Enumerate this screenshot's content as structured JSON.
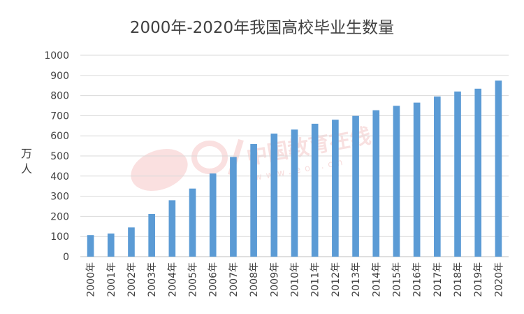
{
  "chart_data": {
    "type": "bar",
    "title": "2000年-2020年我国高校毕业生数量",
    "ylabel": "万人",
    "xlabel": "",
    "ylim": [
      0,
      1000
    ],
    "yticks": [
      0,
      100,
      200,
      300,
      400,
      500,
      600,
      700,
      800,
      900,
      1000
    ],
    "grid": true,
    "legend": "none",
    "bar_color": "#5b9bd5",
    "categories": [
      "2000年",
      "2001年",
      "2002年",
      "2003年",
      "2004年",
      "2005年",
      "2006年",
      "2007年",
      "2008年",
      "2009年",
      "2010年",
      "2011年",
      "2012年",
      "2013年",
      "2014年",
      "2015年",
      "2016年",
      "2017年",
      "2018年",
      "2019年",
      "2020年"
    ],
    "values": [
      107,
      115,
      145,
      212,
      280,
      338,
      413,
      495,
      559,
      611,
      631,
      660,
      680,
      699,
      727,
      749,
      765,
      795,
      820,
      834,
      874
    ]
  },
  "watermark": {
    "logo_text": "eol",
    "brand_text": "中国教育在线",
    "url_text": "www.eol.cn",
    "color": "#e88a8a"
  }
}
